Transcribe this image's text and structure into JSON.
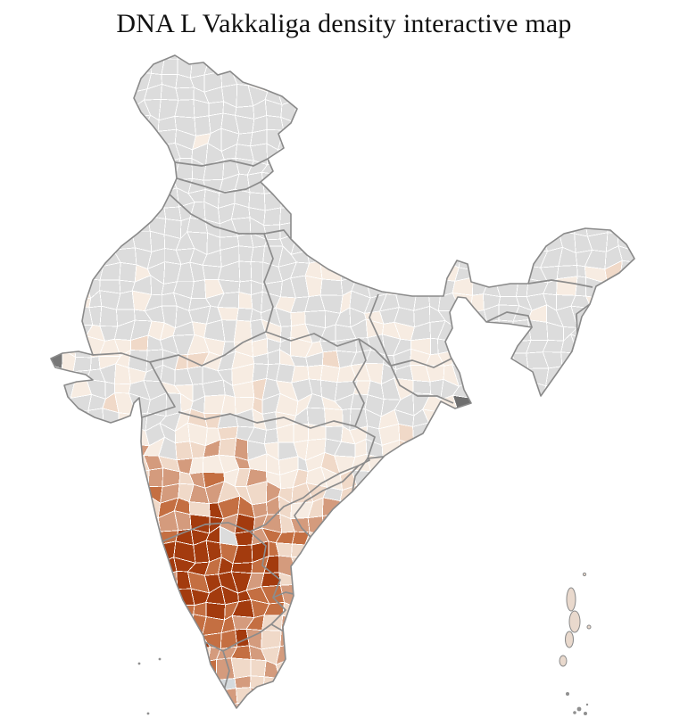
{
  "title": "DNA L Vakkaliga density interactive map",
  "map": {
    "name": "india-district-density-choropleth",
    "sea_color": "#ffffff",
    "no_data_color": "#dcdcdc",
    "district_border_color": "#ffffff",
    "state_border_color": "#8c8c8c",
    "coast_border_color": "#8a8a8a",
    "density_scale_low_to_high": [
      "#f7ece2",
      "#f0d9c8",
      "#d49b7d",
      "#c46f42",
      "#a33b0e"
    ],
    "special_districts": {
      "sundarbans_dark_gray": "#6f6f6f",
      "kutch_tip_dark_gray": "#777777",
      "urban_no_data_gray": "#dcdcdc",
      "south_kerala_gray_blue": "#d5dadd"
    },
    "islands_fill": "#e9d9cd",
    "islands_stroke": "#8a8a8a",
    "small_island_dot_color": "#8f8f8f"
  }
}
